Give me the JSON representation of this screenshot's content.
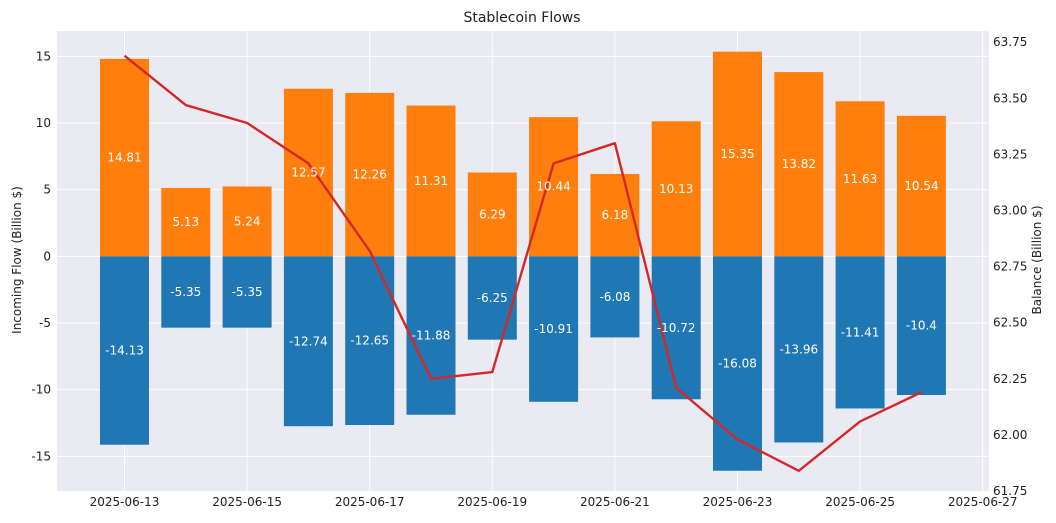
{
  "chart_data": {
    "type": "bar",
    "title": "Stablecoin Flows",
    "ylabel_left": "Incoming Flow (Billion $)",
    "ylabel_right": "Balance (Billion $)",
    "xlabel": "",
    "grid": true,
    "background_color": "#eaeaf2",
    "x_tick_labels": [
      "2025-06-13",
      "2025-06-15",
      "2025-06-17",
      "2025-06-19",
      "2025-06-21",
      "2025-06-23",
      "2025-06-25",
      "2025-06-27"
    ],
    "y_left_ticks": [
      -15,
      -10,
      -5,
      0,
      5,
      10,
      15
    ],
    "y_left_range": [
      -17.6,
      16.9
    ],
    "y_right_ticks": [
      "61.75",
      "62.00",
      "62.25",
      "62.50",
      "62.75",
      "63.00",
      "63.25",
      "63.50",
      "63.75"
    ],
    "y_right_range": [
      61.75,
      63.8
    ],
    "dates": [
      "2025-06-13",
      "2025-06-14",
      "2025-06-15",
      "2025-06-16",
      "2025-06-17",
      "2025-06-18",
      "2025-06-19",
      "2025-06-20",
      "2025-06-21",
      "2025-06-22",
      "2025-06-23",
      "2025-06-24",
      "2025-06-25",
      "2025-06-26"
    ],
    "series": [
      {
        "kind": "bar",
        "color": "#ff7f0e",
        "values": [
          14.81,
          5.13,
          5.24,
          12.57,
          12.26,
          11.31,
          6.29,
          10.44,
          6.18,
          10.13,
          15.35,
          13.82,
          11.63,
          10.54
        ]
      },
      {
        "kind": "bar",
        "color": "#1f77b4",
        "values": [
          -14.13,
          -5.35,
          -5.35,
          -12.74,
          -12.65,
          -11.88,
          -6.25,
          -10.91,
          -6.08,
          -10.72,
          -16.08,
          -13.96,
          -11.41,
          -10.4
        ]
      },
      {
        "kind": "line",
        "axis": "right",
        "color": "#d62728",
        "values": [
          63.69,
          63.47,
          63.39,
          63.21,
          62.82,
          62.25,
          62.28,
          63.21,
          63.3,
          62.21,
          61.98,
          61.84,
          62.06,
          62.19
        ]
      }
    ]
  }
}
